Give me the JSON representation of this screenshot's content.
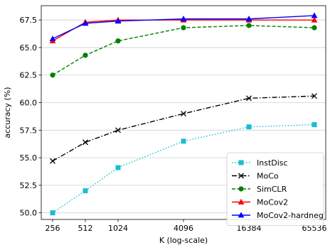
{
  "chart_data": {
    "type": "line",
    "xlabel": "K (log-scale)",
    "ylabel": "accuracy (%)",
    "x_scale": "log2",
    "x": [
      256,
      512,
      1024,
      4096,
      16384,
      65536
    ],
    "x_tick_labels": [
      "256",
      "512",
      "1024",
      "4096",
      "16384",
      "65536"
    ],
    "ylim": [
      49.4,
      68.8
    ],
    "y_ticks": [
      50.0,
      52.5,
      55.0,
      57.5,
      60.0,
      62.5,
      65.0,
      67.5
    ],
    "y_tick_labels": [
      "50.0",
      "52.5",
      "55.0",
      "57.5",
      "60.0",
      "62.5",
      "65.0",
      "67.5"
    ],
    "grid": "horizontal",
    "legend_position": "lower-right",
    "series": [
      {
        "name": "InstDisc",
        "values": [
          50.0,
          52.0,
          54.1,
          56.5,
          57.8,
          58.0
        ],
        "color": "#17becf",
        "dash": "dotted",
        "marker": "square"
      },
      {
        "name": "MoCo",
        "values": [
          54.7,
          56.4,
          57.5,
          59.0,
          60.4,
          60.6
        ],
        "color": "#000000",
        "dash": "dashdot",
        "marker": "x"
      },
      {
        "name": "SimCLR",
        "values": [
          62.5,
          64.3,
          65.6,
          66.8,
          67.0,
          66.8
        ],
        "color": "#008000",
        "dash": "dashed",
        "marker": "circle"
      },
      {
        "name": "MoCov2",
        "values": [
          65.6,
          67.3,
          67.5,
          67.5,
          67.5,
          67.5
        ],
        "color": "#ff0000",
        "dash": "solid",
        "marker": "triangle"
      },
      {
        "name": "MoCov2-hardneg",
        "values": [
          65.8,
          67.2,
          67.4,
          67.6,
          67.6,
          67.9
        ],
        "color": "#0000ff",
        "dash": "solid",
        "marker": "triangle"
      }
    ]
  }
}
